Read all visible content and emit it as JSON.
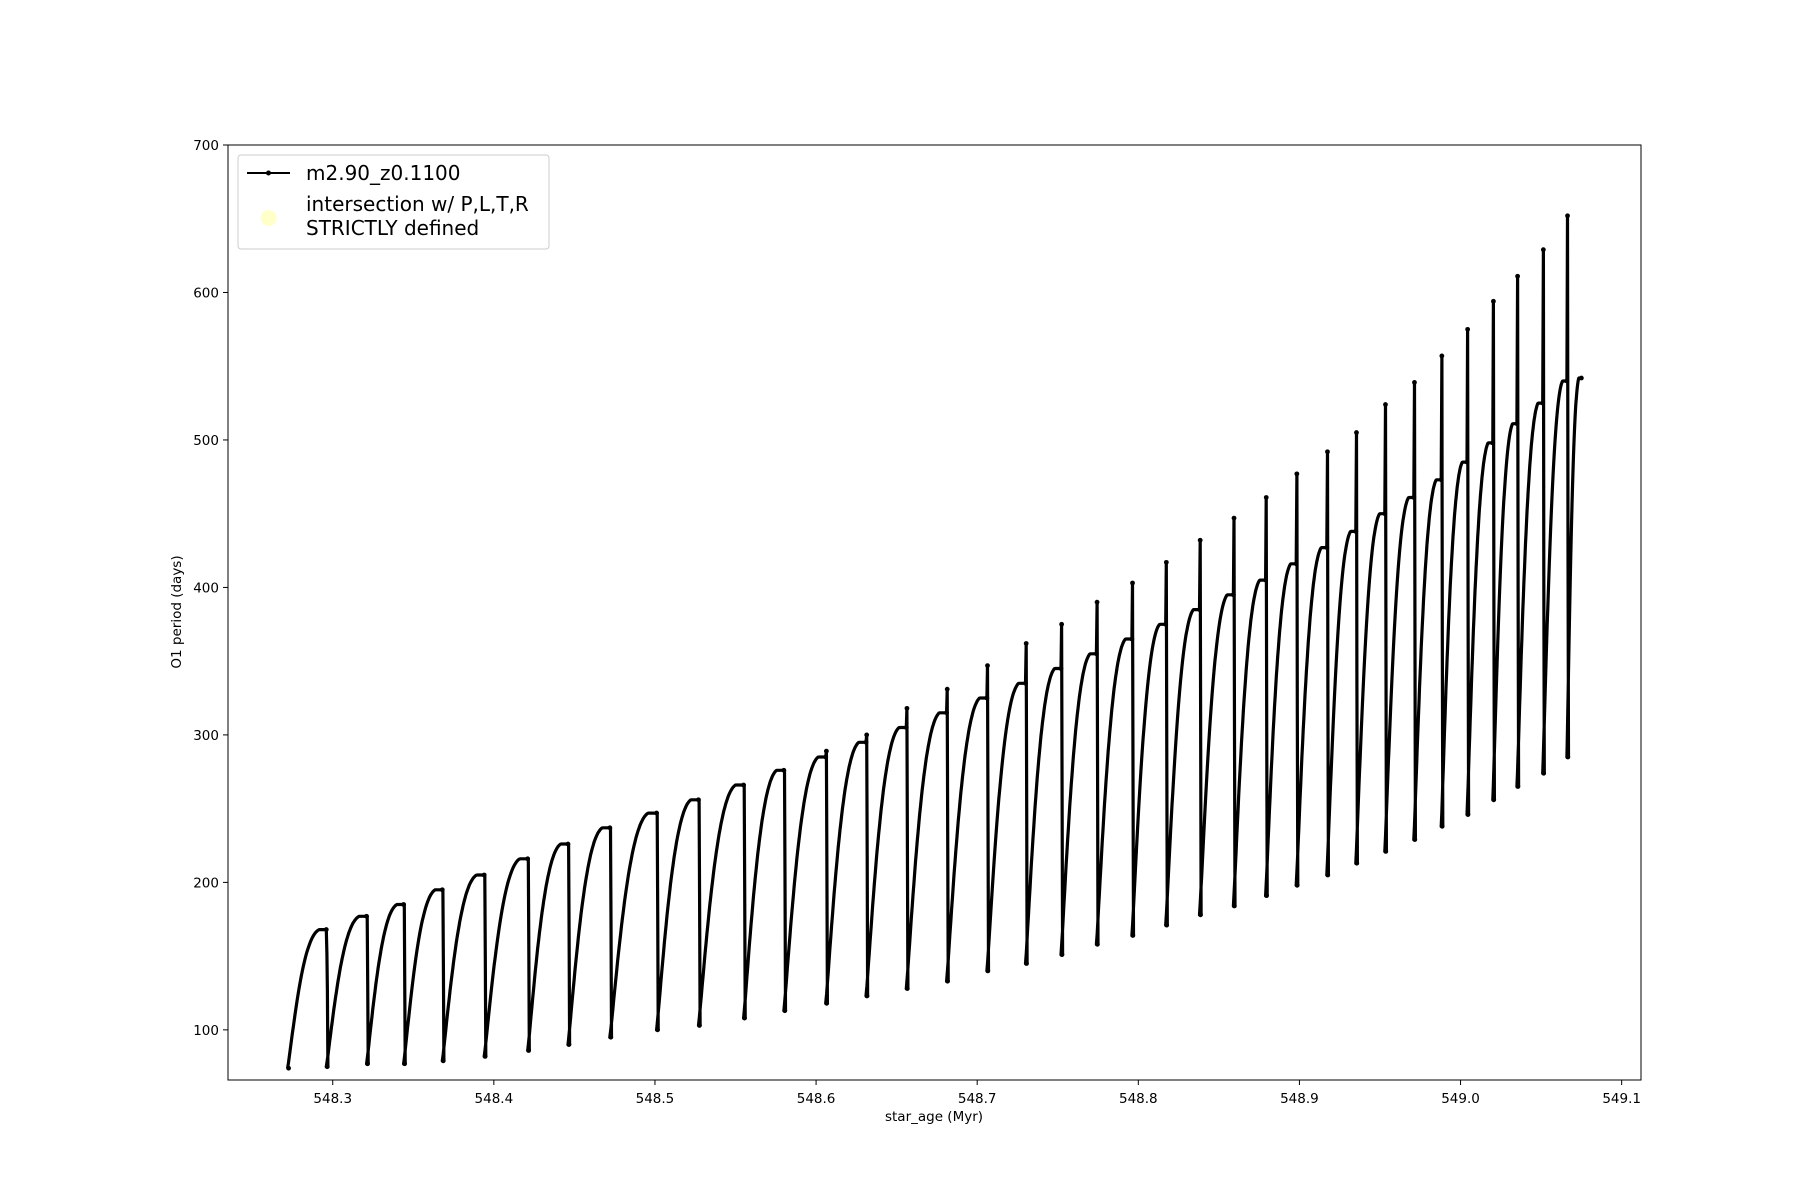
{
  "chart_data": {
    "type": "line",
    "xlabel": "star_age (Myr)",
    "ylabel": "O1 period (days)",
    "xlim": [
      548.235,
      549.112
    ],
    "ylim": [
      66,
      700
    ],
    "xticks": [
      548.3,
      548.4,
      548.5,
      548.6,
      548.7,
      548.8,
      548.9,
      549.0,
      549.1
    ],
    "xtick_labels": [
      "548.3",
      "548.4",
      "548.5",
      "548.6",
      "548.7",
      "548.8",
      "548.9",
      "549.0",
      "549.1"
    ],
    "yticks": [
      100,
      200,
      300,
      400,
      500,
      600,
      700
    ],
    "ytick_labels": [
      "100",
      "200",
      "300",
      "400",
      "500",
      "600",
      "700"
    ],
    "grid": false,
    "legend_position": "top-left",
    "series": [
      {
        "name": "m2.90_z0.1100",
        "color": "#000000",
        "marker": "dot",
        "style": "sawtooth: rises from minimum to peak, then drops sharply at each thermal pulse",
        "cycles": [
          {
            "start": 548.272,
            "end": 548.296,
            "min": 74,
            "peak": 168,
            "spike": 152
          },
          {
            "start": 548.296,
            "end": 548.321,
            "min": 75,
            "peak": 177,
            "spike": 177
          },
          {
            "start": 548.321,
            "end": 548.344,
            "min": 77,
            "peak": 185,
            "spike": 185
          },
          {
            "start": 548.344,
            "end": 548.368,
            "min": 77,
            "peak": 195,
            "spike": 195
          },
          {
            "start": 548.368,
            "end": 548.394,
            "min": 79,
            "peak": 205,
            "spike": 205
          },
          {
            "start": 548.394,
            "end": 548.421,
            "min": 82,
            "peak": 216,
            "spike": 216
          },
          {
            "start": 548.421,
            "end": 548.446,
            "min": 86,
            "peak": 226,
            "spike": 226
          },
          {
            "start": 548.446,
            "end": 548.472,
            "min": 90,
            "peak": 237,
            "spike": 237
          },
          {
            "start": 548.472,
            "end": 548.501,
            "min": 95,
            "peak": 247,
            "spike": 247
          },
          {
            "start": 548.501,
            "end": 548.527,
            "min": 100,
            "peak": 256,
            "spike": 256
          },
          {
            "start": 548.527,
            "end": 548.555,
            "min": 103,
            "peak": 266,
            "spike": 266
          },
          {
            "start": 548.555,
            "end": 548.58,
            "min": 108,
            "peak": 276,
            "spike": 276
          },
          {
            "start": 548.58,
            "end": 548.606,
            "min": 113,
            "peak": 285,
            "spike": 289
          },
          {
            "start": 548.606,
            "end": 548.631,
            "min": 118,
            "peak": 295,
            "spike": 300
          },
          {
            "start": 548.631,
            "end": 548.656,
            "min": 123,
            "peak": 305,
            "spike": 318
          },
          {
            "start": 548.656,
            "end": 548.681,
            "min": 128,
            "peak": 315,
            "spike": 331
          },
          {
            "start": 548.681,
            "end": 548.706,
            "min": 133,
            "peak": 325,
            "spike": 347
          },
          {
            "start": 548.706,
            "end": 548.73,
            "min": 140,
            "peak": 335,
            "spike": 362
          },
          {
            "start": 548.73,
            "end": 548.752,
            "min": 145,
            "peak": 345,
            "spike": 375
          },
          {
            "start": 548.752,
            "end": 548.774,
            "min": 151,
            "peak": 355,
            "spike": 390
          },
          {
            "start": 548.774,
            "end": 548.796,
            "min": 158,
            "peak": 365,
            "spike": 403
          },
          {
            "start": 548.796,
            "end": 548.817,
            "min": 164,
            "peak": 375,
            "spike": 417
          },
          {
            "start": 548.817,
            "end": 548.838,
            "min": 171,
            "peak": 385,
            "spike": 432
          },
          {
            "start": 548.838,
            "end": 548.859,
            "min": 178,
            "peak": 395,
            "spike": 447
          },
          {
            "start": 548.859,
            "end": 548.879,
            "min": 184,
            "peak": 405,
            "spike": 461
          },
          {
            "start": 548.879,
            "end": 548.898,
            "min": 191,
            "peak": 416,
            "spike": 477
          },
          {
            "start": 548.898,
            "end": 548.917,
            "min": 198,
            "peak": 427,
            "spike": 492
          },
          {
            "start": 548.917,
            "end": 548.935,
            "min": 205,
            "peak": 438,
            "spike": 505
          },
          {
            "start": 548.935,
            "end": 548.953,
            "min": 213,
            "peak": 450,
            "spike": 524
          },
          {
            "start": 548.953,
            "end": 548.971,
            "min": 221,
            "peak": 461,
            "spike": 539
          },
          {
            "start": 548.971,
            "end": 548.988,
            "min": 229,
            "peak": 473,
            "spike": 557
          },
          {
            "start": 548.988,
            "end": 549.004,
            "min": 238,
            "peak": 485,
            "spike": 575
          },
          {
            "start": 549.004,
            "end": 549.02,
            "min": 246,
            "peak": 498,
            "spike": 594
          },
          {
            "start": 549.02,
            "end": 549.035,
            "min": 256,
            "peak": 511,
            "spike": 611
          },
          {
            "start": 549.035,
            "end": 549.051,
            "min": 265,
            "peak": 525,
            "spike": 629
          },
          {
            "start": 549.051,
            "end": 549.066,
            "min": 274,
            "peak": 540,
            "spike": 652
          },
          {
            "start": 549.066,
            "end": 549.075,
            "min": 285,
            "peak": 542,
            "spike": 542
          }
        ]
      },
      {
        "name": "intersection w/ P,L,T,R STRICTLY defined",
        "legend_lines": [
          "intersection w/ P,L,T,R",
          "STRICTLY defined"
        ],
        "color": "#ffffc0",
        "marker": "circle",
        "points": []
      }
    ]
  }
}
